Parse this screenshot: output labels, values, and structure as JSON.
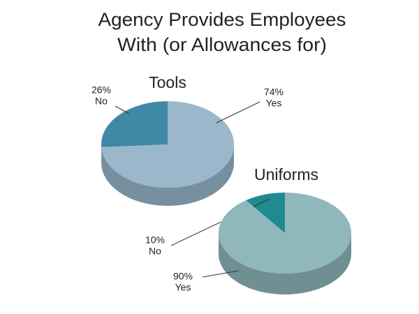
{
  "title": [
    "Agency Provides Employees",
    "With (or Allowances for)"
  ],
  "chart_data": [
    {
      "type": "pie",
      "title": "Tools",
      "categories": [
        "No",
        "Yes"
      ],
      "values": [
        26,
        74
      ],
      "value_labels": [
        "26%",
        "74%"
      ],
      "colors": [
        "#3f88a6",
        "#9ab7cc"
      ]
    },
    {
      "type": "pie",
      "title": "Uniforms",
      "categories": [
        "No",
        "Yes"
      ],
      "values": [
        10,
        90
      ],
      "value_labels": [
        "10%",
        "90%"
      ],
      "colors": [
        "#1f8a8f",
        "#8fb7bc"
      ]
    }
  ]
}
